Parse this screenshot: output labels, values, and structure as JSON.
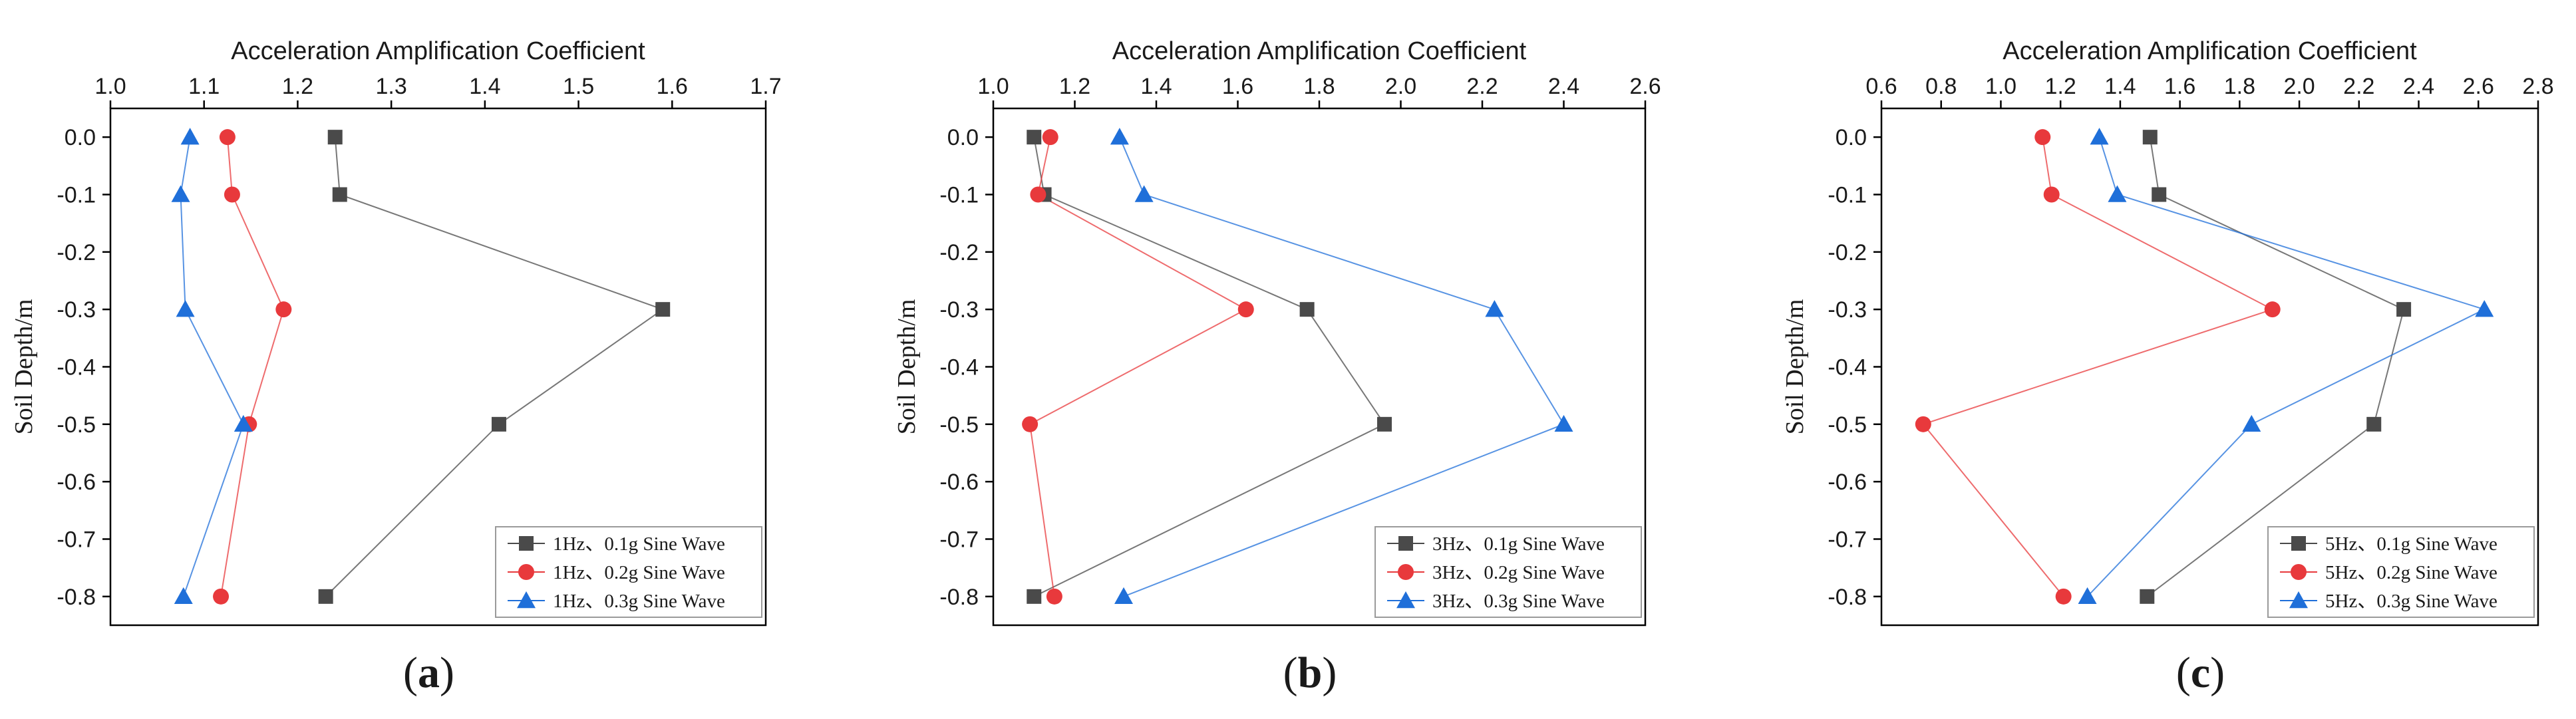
{
  "chart_data": [
    {
      "type": "line",
      "panel_label": "a",
      "xlabel": "Acceleration Amplification Coefficient",
      "ylabel": "Soil Depth/m",
      "xlim": [
        1.0,
        1.7
      ],
      "ylim": [
        -0.85,
        0.05
      ],
      "xticks": [
        "1.0",
        "1.1",
        "1.2",
        "1.3",
        "1.4",
        "1.5",
        "1.6",
        "1.7"
      ],
      "yticks": [
        "0.0",
        "-0.1",
        "-0.2",
        "-0.3",
        "-0.4",
        "-0.5",
        "-0.6",
        "-0.7",
        "-0.8"
      ],
      "y": [
        0.0,
        -0.1,
        -0.3,
        -0.5,
        -0.8
      ],
      "legend_position": "bottom-right",
      "series": [
        {
          "name": "1Hz、0.1g Sine Wave",
          "marker": "square",
          "color": "#4a4a4a",
          "x": [
            1.24,
            1.245,
            1.59,
            1.415,
            1.23
          ]
        },
        {
          "name": "1Hz、0.2g Sine Wave",
          "marker": "circle",
          "color": "#e8393c",
          "x": [
            1.125,
            1.13,
            1.185,
            1.148,
            1.118
          ]
        },
        {
          "name": "1Hz、0.3g Sine Wave",
          "marker": "triangle",
          "color": "#1f6fd9",
          "x": [
            1.085,
            1.075,
            1.08,
            1.142,
            1.078
          ]
        }
      ]
    },
    {
      "type": "line",
      "panel_label": "b",
      "xlabel": "Acceleration Amplification Coefficient",
      "ylabel": "Soil Depth/m",
      "xlim": [
        1.0,
        2.6
      ],
      "ylim": [
        -0.85,
        0.05
      ],
      "xticks": [
        "1.0",
        "1.2",
        "1.4",
        "1.6",
        "1.8",
        "2.0",
        "2.2",
        "2.4",
        "2.6"
      ],
      "yticks": [
        "0.0",
        "-0.1",
        "-0.2",
        "-0.3",
        "-0.4",
        "-0.5",
        "-0.6",
        "-0.7",
        "-0.8"
      ],
      "y": [
        0.0,
        -0.1,
        -0.3,
        -0.5,
        -0.8
      ],
      "legend_position": "bottom-right",
      "series": [
        {
          "name": "3Hz、0.1g Sine Wave",
          "marker": "square",
          "color": "#4a4a4a",
          "x": [
            1.1,
            1.125,
            1.77,
            1.96,
            1.1
          ]
        },
        {
          "name": "3Hz、0.2g Sine Wave",
          "marker": "circle",
          "color": "#e8393c",
          "x": [
            1.14,
            1.11,
            1.62,
            1.09,
            1.15
          ]
        },
        {
          "name": "3Hz、0.3g Sine Wave",
          "marker": "triangle",
          "color": "#1f6fd9",
          "x": [
            1.31,
            1.37,
            2.23,
            2.4,
            1.32
          ]
        }
      ]
    },
    {
      "type": "line",
      "panel_label": "c",
      "xlabel": "Acceleration Amplification Coefficient",
      "ylabel": "Soil Depth/m",
      "xlim": [
        0.6,
        2.8
      ],
      "ylim": [
        -0.85,
        0.05
      ],
      "xticks": [
        "0.6",
        "0.8",
        "1.0",
        "1.2",
        "1.4",
        "1.6",
        "1.8",
        "2.0",
        "2.2",
        "2.4",
        "2.6",
        "2.8"
      ],
      "yticks": [
        "0.0",
        "-0.1",
        "-0.2",
        "-0.3",
        "-0.4",
        "-0.5",
        "-0.6",
        "-0.7",
        "-0.8"
      ],
      "y": [
        0.0,
        -0.1,
        -0.3,
        -0.5,
        -0.8
      ],
      "legend_position": "bottom-right",
      "series": [
        {
          "name": "5Hz、0.1g Sine Wave",
          "marker": "square",
          "color": "#4a4a4a",
          "x": [
            1.5,
            1.53,
            2.35,
            2.25,
            1.49
          ]
        },
        {
          "name": "5Hz、0.2g Sine Wave",
          "marker": "circle",
          "color": "#e8393c",
          "x": [
            1.14,
            1.17,
            1.91,
            0.74,
            1.21
          ]
        },
        {
          "name": "5Hz、0.3g Sine Wave",
          "marker": "triangle",
          "color": "#1f6fd9",
          "x": [
            1.33,
            1.39,
            2.62,
            1.84,
            1.29
          ]
        }
      ]
    }
  ]
}
